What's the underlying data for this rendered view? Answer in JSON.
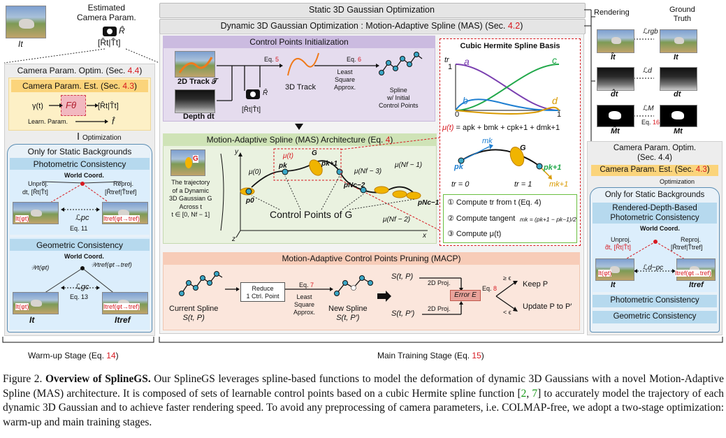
{
  "top_left": {
    "estimated_camera": "Estimated\nCamera Param.",
    "r_hat": "R̂",
    "pose_hat": "[R̂t|T̂t]",
    "frame_label": "It"
  },
  "header": {
    "static": "Static 3D Gaussian Optimization",
    "dynamic_prefix": "Dynamic 3D Gaussian Optimization : Motion-Adaptive Spline (MAS) (Sec. ",
    "dynamic_ref": "4.2",
    "dynamic_suffix": ")"
  },
  "warmup": {
    "cam_optim_prefix": "Camera Param. Optim. (Sec. ",
    "cam_optim_ref": "4.4",
    "cam_est_prefix": "Camera Param. Est. (Sec. ",
    "cam_est_ref": "4.3",
    "gamma": "γ(t)",
    "f_theta": "Fθ",
    "pose": "[R̂t|T̂t]",
    "learn_param": "Learn. Param.",
    "f_hat": "f̂",
    "optimization": "Optimization",
    "only_static": "Only for Static Backgrounds",
    "photometric": "Photometric Consistency",
    "world_coord": "World Coord.",
    "unproj": "Unproj.",
    "unproj_vars": "dt, [R̂t|T̂t]",
    "reproj": "Reproj.",
    "reproj_vars": "[R̂tref|T̂tref]",
    "loss_pc": "ℒpc",
    "eq11": "Eq. 11",
    "geometric": "Geometric Consistency",
    "w_t": "𝒲t(φt)",
    "w_tref": "𝒲tref(φt→tref)",
    "loss_gc": "ℒgc",
    "eq13": "Eq. 13",
    "img_t": "It(φt)",
    "img_tref": "Itref(φt→tref)",
    "It": "It",
    "Itref": "Itref",
    "stage": "Warm-up Stage (Eq. ",
    "stage_ref": "14",
    "stage_end": ")"
  },
  "cpi": {
    "title": "Control Points Initialization",
    "track": "2D Track 𝒯",
    "depth": "Depth dt",
    "eq5": "Eq. 5",
    "track3d": "3D Track",
    "eq6": "Eq. 6",
    "lsa": "Least\nSquare\nApprox.",
    "spline": "Spline\nw/ Initial\nControl Points",
    "r_hat": "R̂",
    "pose": "[R̂t|T̂t]"
  },
  "mas": {
    "title_prefix": "Motion-Adaptive Spline (MAS) Architecture (Eq. ",
    "title_ref": "4",
    "title_end": ")",
    "G": "G",
    "desc": "The trajectory\nof a Dynamic\n3D Gaussian G\nAcross t\nt ∈ [0, Nf − 1]",
    "y": "y",
    "z": "z",
    "x": "x",
    "mu0": "μ(0)",
    "mut": "μ(t)",
    "p0": "p0",
    "pk": "pk",
    "pk1": "pk+1",
    "pnc2": "pNc−2",
    "pnc1": "pNc−1",
    "mu_nf3": "μ(Nf − 3)",
    "mu_nf1": "μ(Nf − 1)",
    "mu_nf2": "μ(Nf − 2)",
    "cp_label": "Control Points of G"
  },
  "hermite": {
    "title": "Cubic Hermite Spline Basis",
    "tr": "tr",
    "one": "1",
    "zero": "0",
    "a": "a",
    "b": "b",
    "c": "c",
    "d": "d",
    "formula_mu": "μ(t)",
    "formula": " = apk + bmk + cpk+1 + dmk+1",
    "mk": "mk",
    "G": "G",
    "pk": "pk",
    "pk1": "pk+1",
    "mk1": "mk+1",
    "tr0": "tr = 0",
    "tr1": "tr = 1",
    "step1": "① Compute tr from t (Eq. 4)",
    "step2": "② Compute tangent",
    "step2_eq": "mk = (pk+1 − pk−1)/2",
    "step3": "③ Compute μ(t)",
    "curves": {
      "a_color": "#7a3fb0",
      "b_color": "#1f7fd1",
      "c_color": "#21a84a",
      "d_color": "#d99a00"
    }
  },
  "macp": {
    "title": "Motion-Adaptive Control Points Pruning (MACP)",
    "current": "Current Spline",
    "s_tp": "S(t, P)",
    "reduce": "Reduce\n1 Ctrl. Point",
    "eq7": "Eq. 7",
    "lsa": "Least\nSquare\nApprox.",
    "new_spline": "New Spline",
    "s_tp2": "S(t, P′)",
    "s_tp_a": "S(t, P)",
    "s_tp_b": "S(t, P′)",
    "proj_a": "2D Proj.",
    "proj_b": "2D Proj.",
    "error": "Error E",
    "eq8": "Eq. 8",
    "geq": "≥ ϵ",
    "lt": "< ϵ",
    "keep": "Keep P",
    "update": "Update P to P′"
  },
  "right": {
    "rendering": "Rendering",
    "ground_truth": "Ground\nTruth",
    "l_rgb": "ℒrgb",
    "l_d": "ℒd",
    "l_m": "ℒM",
    "eq16": "Eq. 16",
    "I_hat": "Ît",
    "I": "It",
    "d_hat": "d̂t",
    "d": "dt",
    "M_hat": "M̂t",
    "M": "Mt",
    "cam_optim": "Camera Param. Optim.\n(Sec. 4.4)",
    "cam_est_prefix": "Camera Param. Est. (Sec. ",
    "cam_est_ref": "4.3",
    "optimization": "Optimization",
    "only_static": "Only for Static Backgrounds",
    "rdb": "Rendered-Depth-Based\nPhotometric Consistency",
    "world_coord": "World Coord.",
    "unproj": "Unproj.",
    "unproj_vars": "d̂t, [R̂t|T̂t]",
    "reproj": "Reproj.",
    "reproj_vars": "[R̂tref|T̂tref]",
    "l_dpc": "ℒd−pc",
    "img_t": "It(φt)",
    "img_tref": "Itref(φt→tref)",
    "It": "It",
    "Itref": "Itref",
    "photometric": "Photometric Consistency",
    "geometric": "Geometric Consistency"
  },
  "main_stage": {
    "prefix": "Main Training Stage (Eq. ",
    "ref": "15",
    "end": ")"
  },
  "caption": {
    "fig": "Figure 2.",
    "bold": "Overview of SplineGS.",
    "body1": " Our SplineGS leverages spline-based functions to model the deformation of dynamic 3D Gaussians with a novel Motion-Adaptive Spline (MAS) architecture. It is composed of sets of learnable control points based on a cubic Hermite spline function [",
    "ref1": "2",
    "sep": ", ",
    "ref2": "7",
    "body2": "] to accurately model the trajectory of each dynamic 3D Gaussian and to achieve faster rendering speed. To avoid any preprocessing of camera parameters, i.e. COLMAP-free, we adopt a two-stage optimization: warm-up and main training stages."
  }
}
